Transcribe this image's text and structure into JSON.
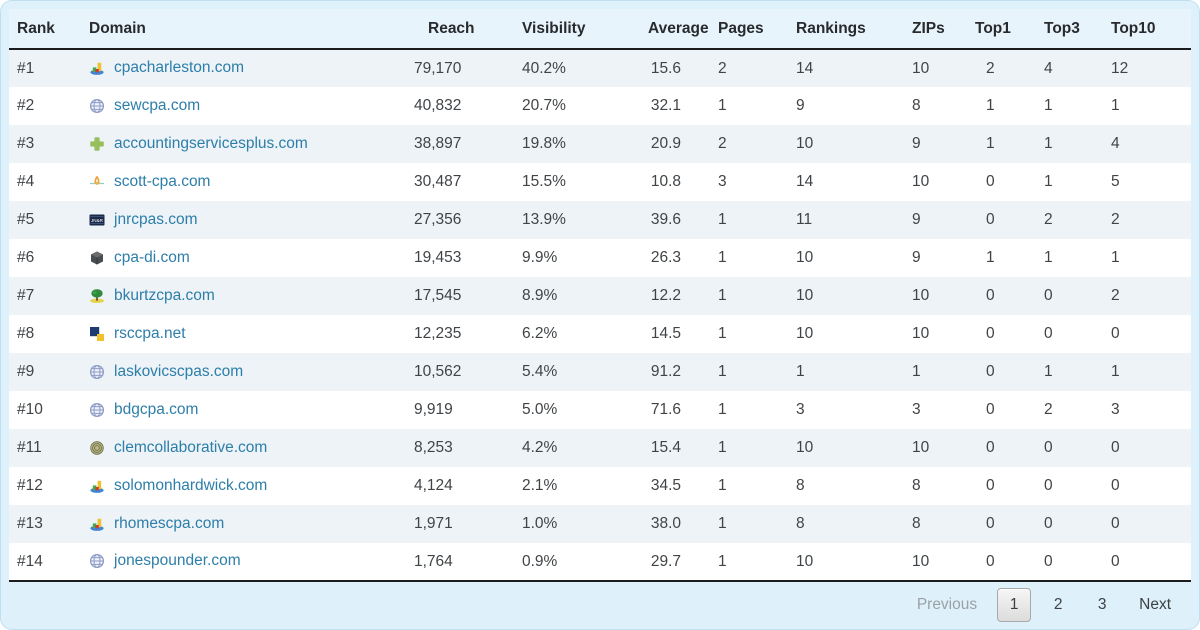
{
  "table": {
    "columns": [
      {
        "key": "rank",
        "label": "Rank"
      },
      {
        "key": "domain",
        "label": "Domain"
      },
      {
        "key": "reach",
        "label": "Reach"
      },
      {
        "key": "visibility",
        "label": "Visibility"
      },
      {
        "key": "average",
        "label": "Average"
      },
      {
        "key": "pages",
        "label": "Pages"
      },
      {
        "key": "rankings",
        "label": "Rankings"
      },
      {
        "key": "zips",
        "label": "ZIPs"
      },
      {
        "key": "top1",
        "label": "Top1"
      },
      {
        "key": "top3",
        "label": "Top3"
      },
      {
        "key": "top10",
        "label": "Top10"
      }
    ],
    "rows": [
      {
        "rank": "#1",
        "icon": "chart-3d-favicon-icon",
        "domain": "cpacharleston.com",
        "reach": "79,170",
        "visibility": "40.2%",
        "average": "15.6",
        "pages": "2",
        "rankings": "14",
        "zips": "10",
        "top1": "2",
        "top3": "4",
        "top10": "12"
      },
      {
        "rank": "#2",
        "icon": "globe-favicon-icon",
        "domain": "sewcpa.com",
        "reach": "40,832",
        "visibility": "20.7%",
        "average": "32.1",
        "pages": "1",
        "rankings": "9",
        "zips": "8",
        "top1": "1",
        "top3": "1",
        "top10": "1"
      },
      {
        "rank": "#3",
        "icon": "green-plus-favicon-icon",
        "domain": "accountingservicesplus.com",
        "reach": "38,897",
        "visibility": "19.8%",
        "average": "20.9",
        "pages": "2",
        "rankings": "10",
        "zips": "9",
        "top1": "1",
        "top3": "1",
        "top10": "4"
      },
      {
        "rank": "#4",
        "icon": "sprout-favicon-icon",
        "domain": "scott-cpa.com",
        "reach": "30,487",
        "visibility": "15.5%",
        "average": "10.8",
        "pages": "3",
        "rankings": "14",
        "zips": "10",
        "top1": "0",
        "top3": "1",
        "top10": "5"
      },
      {
        "rank": "#5",
        "icon": "jnr-badge-favicon-icon",
        "domain": "jnrcpas.com",
        "reach": "27,356",
        "visibility": "13.9%",
        "average": "39.6",
        "pages": "1",
        "rankings": "11",
        "zips": "9",
        "top1": "0",
        "top3": "2",
        "top10": "2"
      },
      {
        "rank": "#6",
        "icon": "cube-favicon-icon",
        "domain": "cpa-di.com",
        "reach": "19,453",
        "visibility": "9.9%",
        "average": "26.3",
        "pages": "1",
        "rankings": "10",
        "zips": "9",
        "top1": "1",
        "top3": "1",
        "top10": "1"
      },
      {
        "rank": "#7",
        "icon": "tree-favicon-icon",
        "domain": "bkurtzcpa.com",
        "reach": "17,545",
        "visibility": "8.9%",
        "average": "12.2",
        "pages": "1",
        "rankings": "10",
        "zips": "10",
        "top1": "0",
        "top3": "0",
        "top10": "2"
      },
      {
        "rank": "#8",
        "icon": "squares-favicon-icon",
        "domain": "rsccpa.net",
        "reach": "12,235",
        "visibility": "6.2%",
        "average": "14.5",
        "pages": "1",
        "rankings": "10",
        "zips": "10",
        "top1": "0",
        "top3": "0",
        "top10": "0"
      },
      {
        "rank": "#9",
        "icon": "globe-favicon-icon",
        "domain": "laskovicscpas.com",
        "reach": "10,562",
        "visibility": "5.4%",
        "average": "91.2",
        "pages": "1",
        "rankings": "1",
        "zips": "1",
        "top1": "0",
        "top3": "1",
        "top10": "1"
      },
      {
        "rank": "#10",
        "icon": "globe-favicon-icon",
        "domain": "bdgcpa.com",
        "reach": "9,919",
        "visibility": "5.0%",
        "average": "71.6",
        "pages": "1",
        "rankings": "3",
        "zips": "3",
        "top1": "0",
        "top3": "2",
        "top10": "3"
      },
      {
        "rank": "#11",
        "icon": "fingerprint-favicon-icon",
        "domain": "clemcollaborative.com",
        "reach": "8,253",
        "visibility": "4.2%",
        "average": "15.4",
        "pages": "1",
        "rankings": "10",
        "zips": "10",
        "top1": "0",
        "top3": "0",
        "top10": "0"
      },
      {
        "rank": "#12",
        "icon": "chart-3d-favicon-icon",
        "domain": "solomonhardwick.com",
        "reach": "4,124",
        "visibility": "2.1%",
        "average": "34.5",
        "pages": "1",
        "rankings": "8",
        "zips": "8",
        "top1": "0",
        "top3": "0",
        "top10": "0"
      },
      {
        "rank": "#13",
        "icon": "chart-3d-favicon-icon",
        "domain": "rhomescpa.com",
        "reach": "1,971",
        "visibility": "1.0%",
        "average": "38.0",
        "pages": "1",
        "rankings": "8",
        "zips": "8",
        "top1": "0",
        "top3": "0",
        "top10": "0"
      },
      {
        "rank": "#14",
        "icon": "globe-favicon-icon",
        "domain": "jonespounder.com",
        "reach": "1,764",
        "visibility": "0.9%",
        "average": "29.7",
        "pages": "1",
        "rankings": "10",
        "zips": "10",
        "top1": "0",
        "top3": "0",
        "top10": "0"
      }
    ]
  },
  "icons": {
    "jnr_badge_text": "JN&R"
  },
  "pagination": {
    "previous_label": "Previous",
    "pages": [
      "1",
      "2",
      "3"
    ],
    "active_page": "1",
    "next_label": "Next"
  },
  "colors": {
    "link": "#2d7ea9",
    "frame_bg": "#def1fb",
    "frame_border": "#bfe0f0",
    "header_bg": "#e8f4fb",
    "stripe_bg": "#edf3f7",
    "dark_border": "#1c1c1c"
  }
}
